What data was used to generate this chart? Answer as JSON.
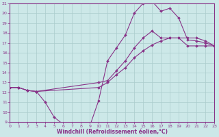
{
  "xlabel": "Windchill (Refroidissement éolien,°C)",
  "xlim": [
    0,
    23
  ],
  "ylim": [
    9,
    21
  ],
  "xticks": [
    0,
    1,
    2,
    3,
    4,
    5,
    6,
    7,
    8,
    9,
    10,
    11,
    12,
    13,
    14,
    15,
    16,
    17,
    18,
    19,
    20,
    21,
    22,
    23
  ],
  "yticks": [
    9,
    10,
    11,
    12,
    13,
    14,
    15,
    16,
    17,
    18,
    19,
    20,
    21
  ],
  "bg_color": "#cce8e8",
  "grid_color": "#aacccc",
  "line_color": "#883388",
  "line1_x": [
    0,
    1,
    2,
    3,
    4,
    5,
    6,
    7,
    8,
    9,
    10,
    11,
    12,
    13,
    14,
    15,
    16,
    17,
    18,
    19,
    20,
    21,
    22,
    23
  ],
  "line1_y": [
    12.5,
    12.5,
    12.2,
    12.1,
    11.0,
    9.5,
    8.8,
    8.6,
    8.6,
    8.6,
    11.2,
    15.2,
    16.5,
    17.8,
    20.0,
    21.0,
    21.2,
    20.2,
    20.5,
    19.5,
    17.3,
    17.2,
    17.0,
    16.7
  ],
  "line2_x": [
    0,
    1,
    2,
    3,
    10,
    11,
    12,
    13,
    14,
    15,
    16,
    17,
    18,
    19,
    20,
    21,
    22,
    23
  ],
  "line2_y": [
    12.5,
    12.5,
    12.2,
    12.1,
    13.0,
    13.2,
    14.2,
    15.2,
    16.5,
    17.5,
    18.2,
    17.5,
    17.5,
    17.5,
    17.5,
    17.5,
    17.2,
    16.7
  ],
  "line3_x": [
    0,
    1,
    2,
    3,
    10,
    11,
    12,
    13,
    14,
    15,
    16,
    17,
    18,
    19,
    20,
    21,
    22,
    23
  ],
  "line3_y": [
    12.5,
    12.5,
    12.2,
    12.1,
    12.5,
    13.0,
    13.8,
    14.5,
    15.5,
    16.2,
    16.8,
    17.2,
    17.5,
    17.5,
    16.7,
    16.7,
    16.7,
    16.7
  ],
  "tick_fontsize": 4.5,
  "xlabel_fontsize": 5.5
}
